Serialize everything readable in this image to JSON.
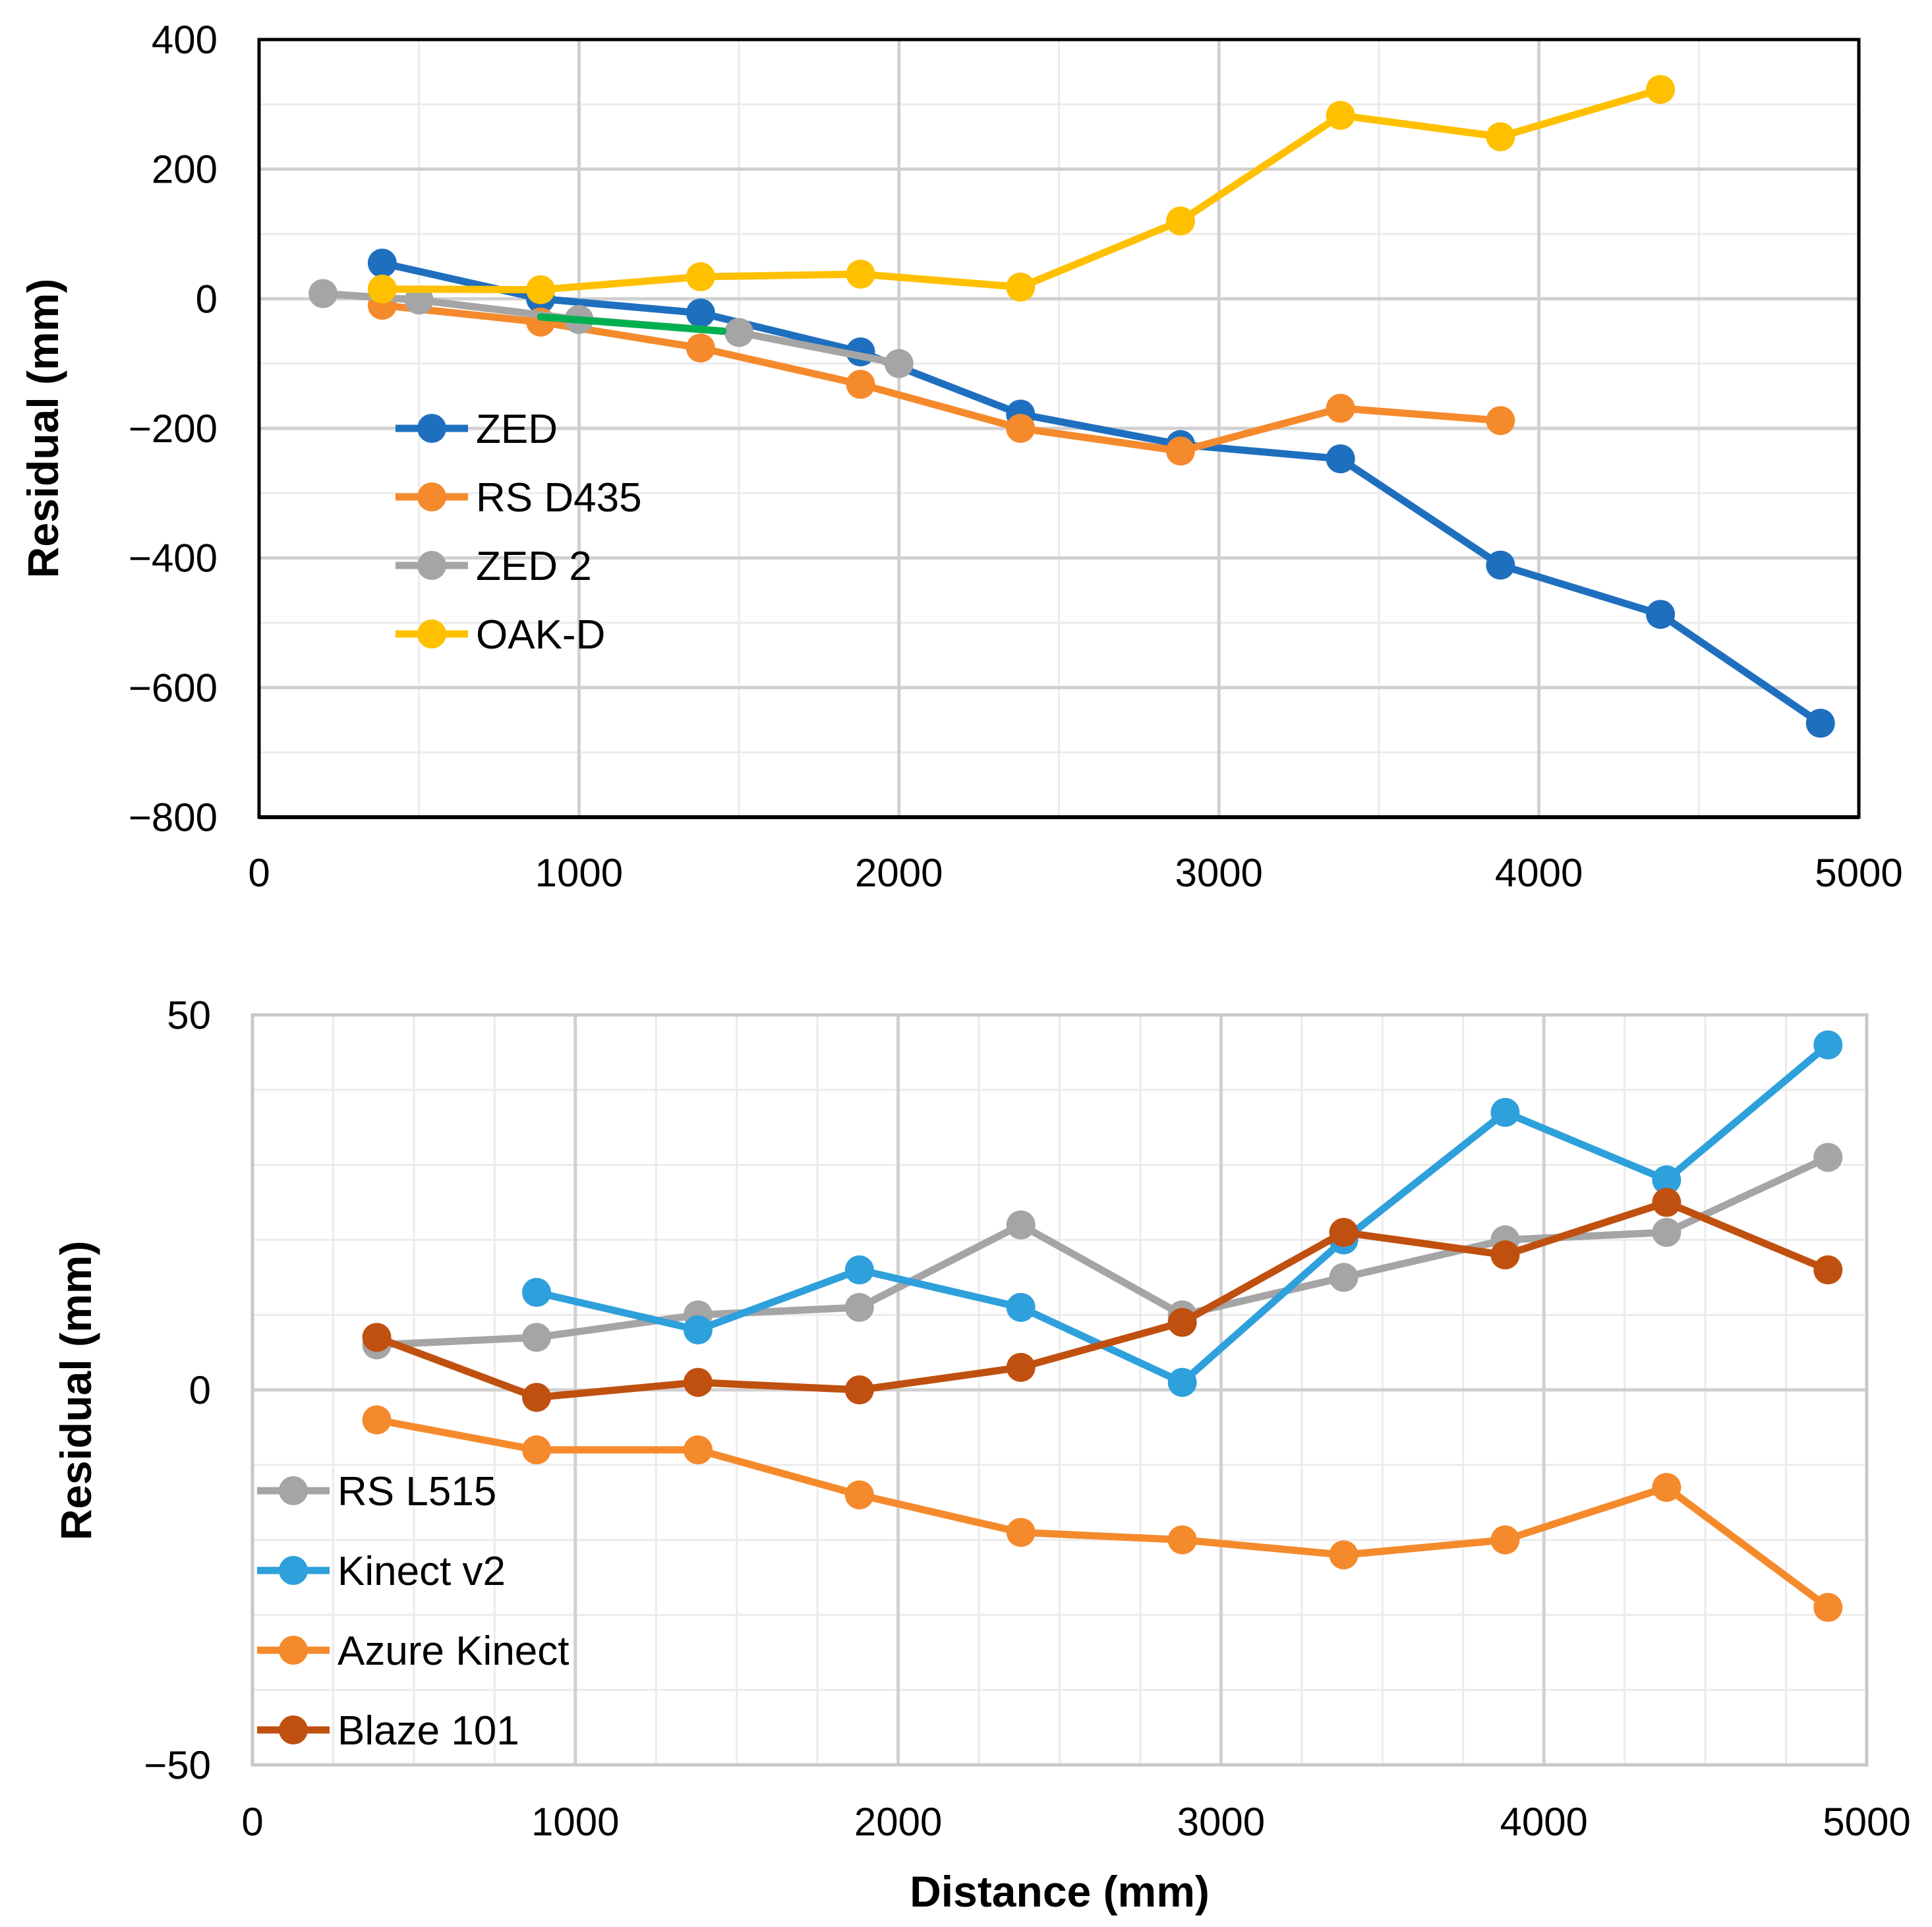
{
  "chart_data": [
    {
      "type": "line",
      "title": "",
      "xlabel": "",
      "ylabel": "Residual (mm)",
      "xlim": [
        0,
        5000
      ],
      "ylim": [
        -800,
        400
      ],
      "x_ticks": [
        0,
        1000,
        2000,
        3000,
        4000,
        5000
      ],
      "x_tick_labels": [
        "0",
        "1000",
        "2000",
        "3000",
        "4000",
        "5000"
      ],
      "y_ticks": [
        400,
        200,
        0,
        -200,
        -400,
        -600,
        -800
      ],
      "y_tick_labels": [
        "400",
        "200",
        "0",
        "−200",
        "−400",
        "−600",
        "−800"
      ],
      "legend_position": "center-left",
      "grid": true,
      "series": [
        {
          "name": "ZED",
          "color": "#1F6FBF",
          "x": [
            385,
            880,
            1380,
            1880,
            2380,
            2880,
            3380,
            3880,
            4380,
            4880
          ],
          "y": [
            55,
            0,
            -22,
            -82,
            -178,
            -225,
            -247,
            -411,
            -487,
            -655
          ]
        },
        {
          "name": "RS D435",
          "color": "#F58A2C",
          "x": [
            385,
            880,
            1380,
            1880,
            2380,
            2880,
            3380,
            3880
          ],
          "y": [
            -10,
            -36,
            -76,
            -132,
            -200,
            -235,
            -169,
            -188
          ]
        },
        {
          "name": "ZED 2",
          "color": "#A5A5A5",
          "x": [
            200,
            500,
            1000,
            1500,
            2000
          ],
          "y": [
            8,
            -2,
            -32,
            -52,
            -100
          ]
        },
        {
          "name": "OAK-D",
          "color": "#FFC000",
          "x": [
            385,
            880,
            1380,
            1880,
            2380,
            2880,
            3380,
            3880,
            4380
          ],
          "y": [
            15,
            14,
            34,
            38,
            18,
            120,
            283,
            250,
            323
          ]
        },
        {
          "name": "",
          "color": "#00B050",
          "x": [
            880,
            1450
          ],
          "y": [
            -28,
            -50
          ],
          "markers": false
        }
      ]
    },
    {
      "type": "line",
      "title": "",
      "xlabel": "Distance (mm)",
      "ylabel": "Residual (mm)",
      "xlim": [
        0,
        5000
      ],
      "ylim": [
        -50,
        50
      ],
      "x_ticks": [
        0,
        1000,
        2000,
        3000,
        4000,
        5000
      ],
      "x_tick_labels": [
        "0",
        "1000",
        "2000",
        "3000",
        "4000",
        "5000"
      ],
      "y_ticks": [
        50,
        0,
        -50
      ],
      "y_tick_labels": [
        "50",
        "0",
        "−50"
      ],
      "legend_position": "bottom-left",
      "grid": true,
      "series": [
        {
          "name": "RS L515",
          "color": "#A5A5A5",
          "x": [
            385,
            880,
            1380,
            1880,
            2380,
            2880,
            3380,
            3880,
            4380,
            4880
          ],
          "y": [
            6,
            7,
            10,
            11,
            22,
            10,
            15,
            20,
            21,
            31
          ]
        },
        {
          "name": "Kinect v2",
          "color": "#2EA0DC",
          "x": [
            880,
            1380,
            1880,
            2380,
            2880,
            3380,
            3880,
            4380,
            4880
          ],
          "y": [
            13,
            8,
            16,
            11,
            1,
            20,
            37,
            28,
            46
          ]
        },
        {
          "name": "Azure Kinect",
          "color": "#F58A2C",
          "x": [
            385,
            880,
            1380,
            1880,
            2380,
            2880,
            3380,
            3880,
            4380,
            4880
          ],
          "y": [
            -4,
            -8,
            -8,
            -14,
            -19,
            -20,
            -22,
            -20,
            -13,
            -29
          ]
        },
        {
          "name": "Blaze 101",
          "color": "#C0500F",
          "x": [
            385,
            880,
            1380,
            1880,
            2380,
            2880,
            3380,
            3880,
            4380,
            4880
          ],
          "y": [
            7,
            -1,
            1,
            0,
            3,
            9,
            21,
            18,
            25,
            16
          ]
        }
      ]
    }
  ]
}
